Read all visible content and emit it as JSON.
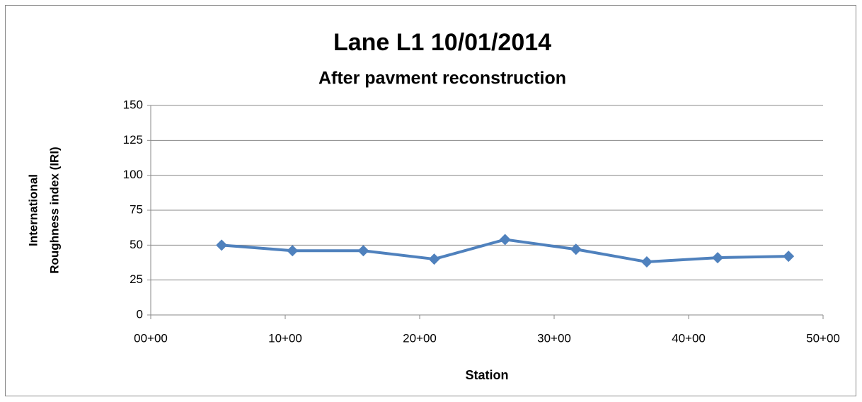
{
  "chart_data": {
    "type": "line",
    "title": "Lane L1 10/01/2014",
    "subtitle": "After pavment reconstruction",
    "xlabel": "Station",
    "ylabel": [
      "International",
      "Roughness index (IRI)"
    ],
    "x": [
      527,
      1054,
      1581,
      2108,
      2635,
      3162,
      3689,
      4216,
      4743
    ],
    "series": [
      {
        "color": "#4f81bd",
        "marker": "diamond",
        "values": [
          50,
          46,
          46,
          40,
          54,
          47,
          38,
          41,
          42
        ]
      }
    ],
    "xlim": [
      0,
      5000
    ],
    "xticks": [
      {
        "value": 0,
        "label": "00+00"
      },
      {
        "value": 1000,
        "label": "10+00"
      },
      {
        "value": 2000,
        "label": "20+00"
      },
      {
        "value": 3000,
        "label": "30+00"
      },
      {
        "value": 4000,
        "label": "40+00"
      },
      {
        "value": 5000,
        "label": "50+00"
      }
    ],
    "ylim": [
      0,
      150
    ],
    "yticks": [
      0,
      25,
      50,
      75,
      100,
      125,
      150
    ],
    "grid": true
  }
}
